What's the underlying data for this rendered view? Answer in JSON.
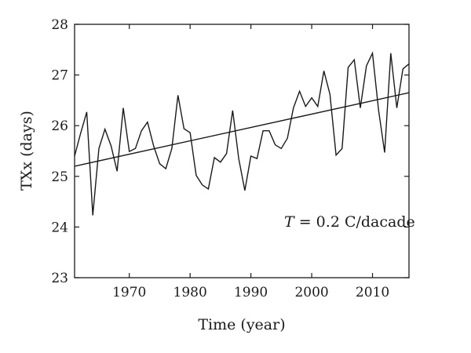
{
  "chart_data": {
    "type": "line",
    "title": "",
    "xlabel": "Time (year)",
    "ylabel": "TXx (days)",
    "xlim": [
      1961,
      2016
    ],
    "ylim": [
      23,
      28
    ],
    "xticks": [
      1970,
      1980,
      1990,
      2000,
      2010
    ],
    "yticks": [
      23,
      24,
      25,
      26,
      27,
      28
    ],
    "grid": false,
    "annotation": {
      "var": "T",
      "text": " = 0.2 C/dacade"
    },
    "series": [
      {
        "x": [
          1961,
          1962,
          1963,
          1964,
          1965,
          1966,
          1967,
          1968,
          1969,
          1970,
          1971,
          1972,
          1973,
          1974,
          1975,
          1976,
          1977,
          1978,
          1979,
          1980,
          1981,
          1982,
          1983,
          1984,
          1985,
          1986,
          1987,
          1988,
          1989,
          1990,
          1991,
          1992,
          1993,
          1994,
          1995,
          1996,
          1997,
          1998,
          1999,
          2000,
          2001,
          2002,
          2003,
          2004,
          2005,
          2006,
          2007,
          2008,
          2009,
          2010,
          2011,
          2012,
          2013,
          2014,
          2015,
          2016
        ],
        "values": [
          25.4,
          25.85,
          26.27,
          24.23,
          25.55,
          25.93,
          25.6,
          25.1,
          26.35,
          25.49,
          25.55,
          25.9,
          26.07,
          25.6,
          25.25,
          25.15,
          25.55,
          26.6,
          25.94,
          25.86,
          25.02,
          24.83,
          24.75,
          25.37,
          25.28,
          25.45,
          26.3,
          25.35,
          24.72,
          25.4,
          25.35,
          25.9,
          25.9,
          25.62,
          25.55,
          25.75,
          26.35,
          26.68,
          26.38,
          26.55,
          26.38,
          27.08,
          26.62,
          25.42,
          25.55,
          27.15,
          27.3,
          26.35,
          27.18,
          27.43,
          26.3,
          25.47,
          27.43,
          26.35,
          27.12,
          27.22
        ]
      },
      {
        "x": [
          1961,
          2016
        ],
        "values": [
          25.2,
          26.65
        ]
      }
    ]
  }
}
